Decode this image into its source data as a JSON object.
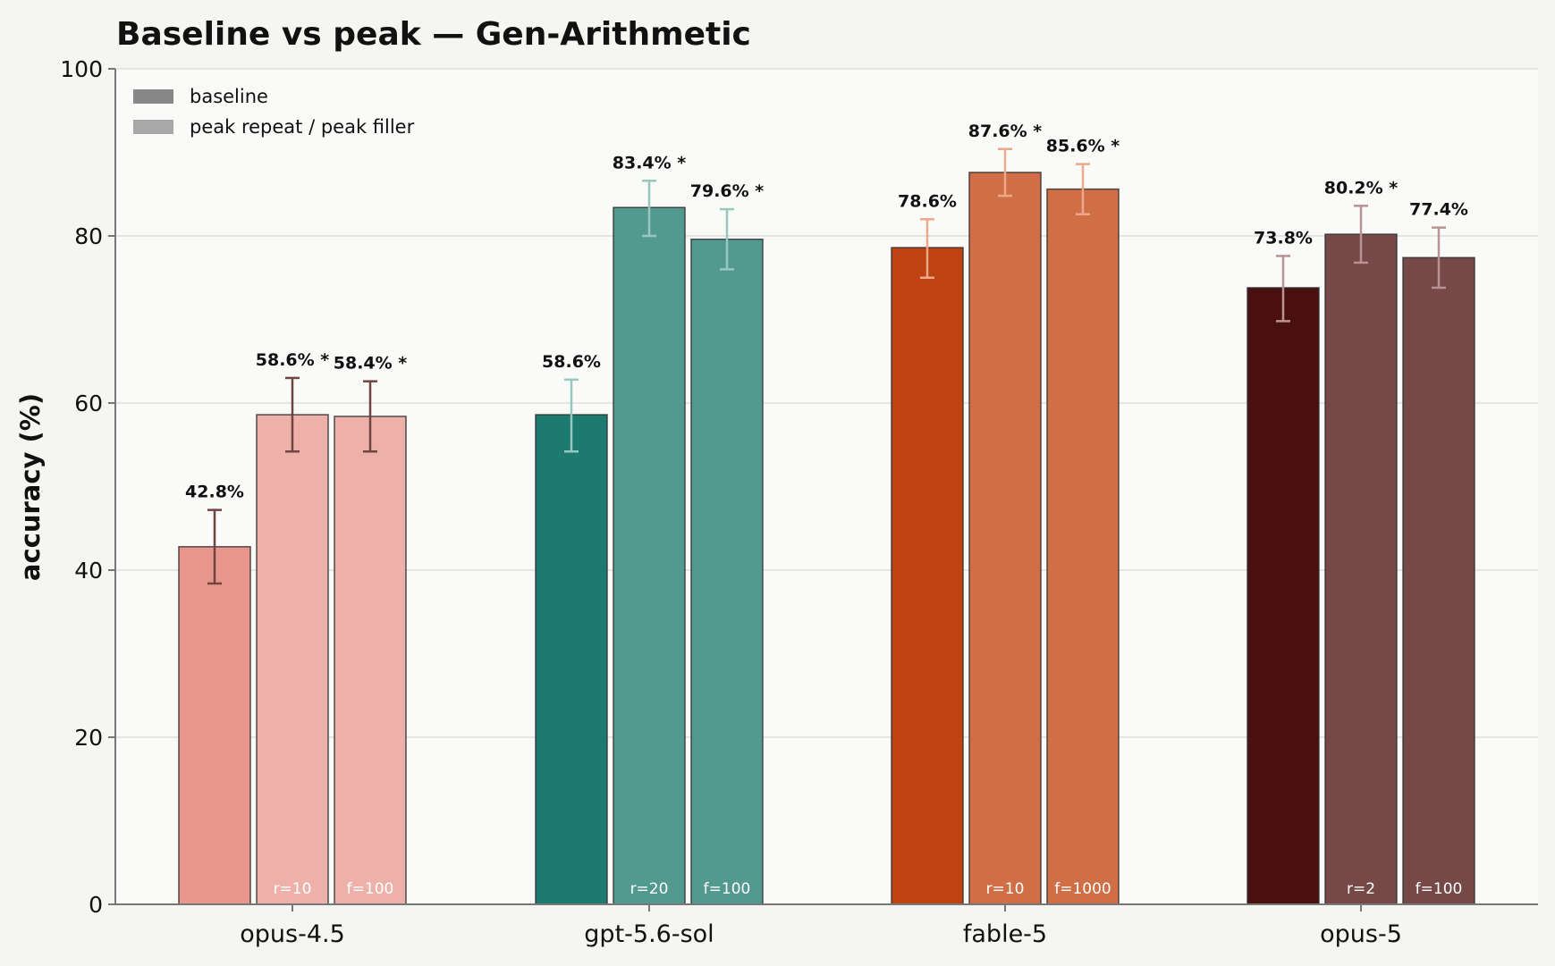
{
  "chart_data": {
    "type": "bar",
    "title": "Baseline vs peak — Gen-Arithmetic",
    "xlabel": "",
    "ylabel": "accuracy (%)",
    "ylim": [
      0,
      100
    ],
    "yticks": [
      0,
      20,
      40,
      60,
      80,
      100
    ],
    "grid": true,
    "legend_position": "top-left",
    "legend": [
      {
        "label": "baseline",
        "color": "#878787"
      },
      {
        "label": "peak repeat / peak filler",
        "color": "#a8a8a8"
      }
    ],
    "categories": [
      "opus-4.5",
      "gpt-5.6-sol",
      "fable-5",
      "opus-5"
    ],
    "groups": [
      {
        "model": "opus-4.5",
        "colors": {
          "baseline": "#e8968b",
          "peak": "#edb1a9",
          "whisker": "#6e4540"
        },
        "bars": [
          {
            "kind": "baseline",
            "value": 42.8,
            "err_low": 38.4,
            "err_high": 47.2,
            "label": "42.8%",
            "setting": ""
          },
          {
            "kind": "peak repeat",
            "value": 58.6,
            "err_low": 54.2,
            "err_high": 63.0,
            "label": "58.6% *",
            "setting": "r=10"
          },
          {
            "kind": "peak filler",
            "value": 58.4,
            "err_low": 54.2,
            "err_high": 62.6,
            "label": "58.4% *",
            "setting": "f=100"
          }
        ]
      },
      {
        "model": "gpt-5.6-sol",
        "colors": {
          "baseline": "#1c7a6e",
          "peak": "#52998f",
          "whisker": "#98c6c1"
        },
        "bars": [
          {
            "kind": "baseline",
            "value": 58.6,
            "err_low": 54.2,
            "err_high": 62.8,
            "label": "58.6%",
            "setting": ""
          },
          {
            "kind": "peak repeat",
            "value": 83.4,
            "err_low": 80.0,
            "err_high": 86.6,
            "label": "83.4% *",
            "setting": "r=20"
          },
          {
            "kind": "peak filler",
            "value": 79.6,
            "err_low": 76.0,
            "err_high": 83.2,
            "label": "79.6% *",
            "setting": "f=100"
          }
        ]
      },
      {
        "model": "fable-5",
        "colors": {
          "baseline": "#bf4310",
          "peak": "#d06e46",
          "whisker": "#eba88a"
        },
        "bars": [
          {
            "kind": "baseline",
            "value": 78.6,
            "err_low": 75.0,
            "err_high": 82.0,
            "label": "78.6%",
            "setting": ""
          },
          {
            "kind": "peak repeat",
            "value": 87.6,
            "err_low": 84.8,
            "err_high": 90.4,
            "label": "87.6% *",
            "setting": "r=10"
          },
          {
            "kind": "peak filler",
            "value": 85.6,
            "err_low": 82.6,
            "err_high": 88.6,
            "label": "85.6% *",
            "setting": "f=1000"
          }
        ]
      },
      {
        "model": "opus-5",
        "colors": {
          "baseline": "#4a1010",
          "peak": "#774848",
          "whisker": "#b99394"
        },
        "bars": [
          {
            "kind": "baseline",
            "value": 73.8,
            "err_low": 69.8,
            "err_high": 77.6,
            "label": "73.8%",
            "setting": ""
          },
          {
            "kind": "peak repeat",
            "value": 80.2,
            "err_low": 76.8,
            "err_high": 83.6,
            "label": "80.2% *",
            "setting": "r=2"
          },
          {
            "kind": "peak filler",
            "value": 77.4,
            "err_low": 73.8,
            "err_high": 81.0,
            "label": "77.4%",
            "setting": "f=100"
          }
        ]
      }
    ]
  }
}
